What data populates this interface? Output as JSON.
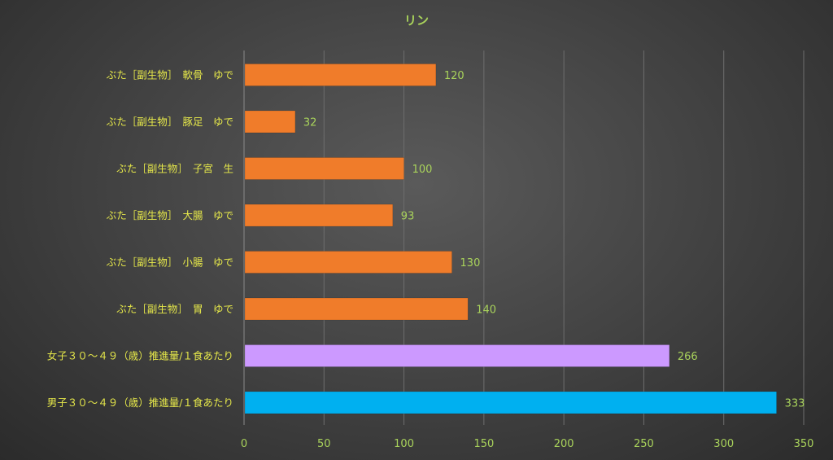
{
  "chart_data": {
    "type": "bar",
    "orientation": "horizontal",
    "title": "リン",
    "xlabel": "",
    "ylabel": "",
    "xlim": [
      0,
      350
    ],
    "xticks": [
      0,
      50,
      100,
      150,
      200,
      250,
      300,
      350
    ],
    "grid": true,
    "legend": "none",
    "categories": [
      "ぶた［副生物］　軟骨　ゆで",
      "ぶた［副生物］　豚足　ゆで",
      "ぶた［副生物］　子宮　生",
      "ぶた［副生物］　大腸　ゆで",
      "ぶた［副生物］　小腸　ゆで",
      "ぶた［副生物］　胃　ゆで",
      "女子３０～４９（歳）推進量/１食あたり",
      "男子３０～４９（歳）推進量/１食あたり"
    ],
    "values": [
      120,
      32,
      100,
      93,
      130,
      140,
      266,
      333
    ],
    "colors": [
      "#f07c2a",
      "#f07c2a",
      "#f07c2a",
      "#f07c2a",
      "#f07c2a",
      "#f07c2a",
      "#cc99ff",
      "#00b0f0"
    ]
  }
}
